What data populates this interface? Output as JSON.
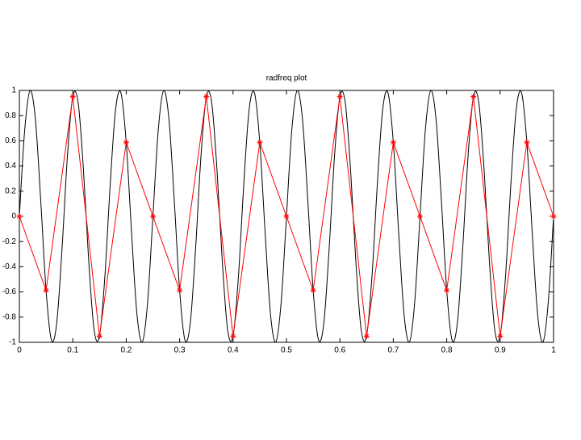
{
  "chart_data": {
    "type": "line",
    "title": "radfreq plot",
    "xlim": [
      0,
      1
    ],
    "ylim": [
      -1,
      1
    ],
    "xticks": [
      0,
      0.1,
      0.2,
      0.3,
      0.4,
      0.5,
      0.6,
      0.7,
      0.8,
      0.9,
      1
    ],
    "yticks": [
      -1,
      -0.8,
      -0.6,
      -0.4,
      -0.2,
      0,
      0.2,
      0.4,
      0.6,
      0.8,
      1
    ],
    "box": true,
    "series": [
      {
        "color": "#000000",
        "smooth": true,
        "x": [
          0,
          0.01,
          0.02,
          0.03,
          0.04,
          0.05,
          0.06,
          0.07,
          0.08,
          0.09,
          0.1,
          0.11,
          0.12,
          0.13,
          0.14,
          0.15,
          0.16,
          0.17,
          0.18,
          0.19,
          0.2,
          0.21,
          0.22,
          0.23,
          0.24,
          0.25,
          0.26,
          0.27,
          0.28,
          0.29,
          0.3,
          0.31,
          0.32,
          0.33,
          0.34,
          0.35,
          0.36,
          0.37,
          0.38,
          0.39,
          0.4,
          0.41,
          0.42,
          0.43,
          0.44,
          0.45,
          0.46,
          0.47,
          0.48,
          0.49,
          0.5,
          0.51,
          0.52,
          0.53,
          0.54,
          0.55,
          0.56,
          0.57,
          0.58,
          0.59,
          0.6,
          0.61,
          0.62,
          0.63,
          0.64,
          0.65,
          0.66,
          0.67,
          0.68,
          0.69,
          0.7,
          0.71,
          0.72,
          0.73,
          0.74,
          0.75,
          0.76,
          0.77,
          0.78,
          0.79,
          0.8,
          0.81,
          0.82,
          0.83,
          0.84,
          0.85,
          0.86,
          0.87,
          0.88,
          0.89,
          0.9,
          0.91,
          0.92,
          0.93,
          0.94,
          0.95,
          0.96,
          0.97,
          0.98,
          0.99,
          1
        ],
        "values": [
          0,
          0.685,
          0.998,
          0.771,
          0.125,
          -0.588,
          -0.982,
          -0.844,
          -0.249,
          0.482,
          0.951,
          0.905,
          0.368,
          -0.368,
          -0.905,
          -0.951,
          -0.482,
          0.249,
          0.844,
          0.982,
          0.588,
          -0.125,
          -0.771,
          -0.998,
          -0.685,
          0,
          0.685,
          0.998,
          0.771,
          0.125,
          -0.588,
          -0.982,
          -0.844,
          -0.249,
          0.482,
          0.951,
          0.905,
          0.368,
          -0.368,
          -0.905,
          -0.951,
          -0.482,
          0.249,
          0.844,
          0.982,
          0.588,
          -0.125,
          -0.771,
          -0.998,
          -0.685,
          0,
          0.685,
          0.998,
          0.771,
          0.125,
          -0.588,
          -0.982,
          -0.844,
          -0.249,
          0.482,
          0.951,
          0.905,
          0.368,
          -0.368,
          -0.905,
          -0.951,
          -0.482,
          0.249,
          0.844,
          0.982,
          0.588,
          -0.125,
          -0.771,
          -0.998,
          -0.685,
          0,
          0.685,
          0.998,
          0.771,
          0.125,
          -0.588,
          -0.982,
          -0.844,
          -0.249,
          0.482,
          0.951,
          0.905,
          0.368,
          -0.368,
          -0.905,
          -0.951,
          -0.482,
          0.249,
          0.844,
          0.982,
          0.588,
          -0.125,
          -0.771,
          -0.998,
          -0.685,
          0
        ]
      },
      {
        "color": "#ff0000",
        "marker": "*",
        "x": [
          0,
          0.05,
          0.1,
          0.15,
          0.2,
          0.25,
          0.3,
          0.35,
          0.4,
          0.45,
          0.5,
          0.55,
          0.6,
          0.65,
          0.7,
          0.75,
          0.8,
          0.85,
          0.9,
          0.95,
          1
        ],
        "values": [
          0,
          -0.588,
          0.951,
          -0.951,
          0.588,
          0,
          -0.588,
          0.951,
          -0.951,
          0.588,
          0,
          -0.588,
          0.951,
          -0.951,
          0.588,
          0,
          -0.588,
          0.951,
          -0.951,
          0.588,
          0
        ]
      }
    ]
  }
}
